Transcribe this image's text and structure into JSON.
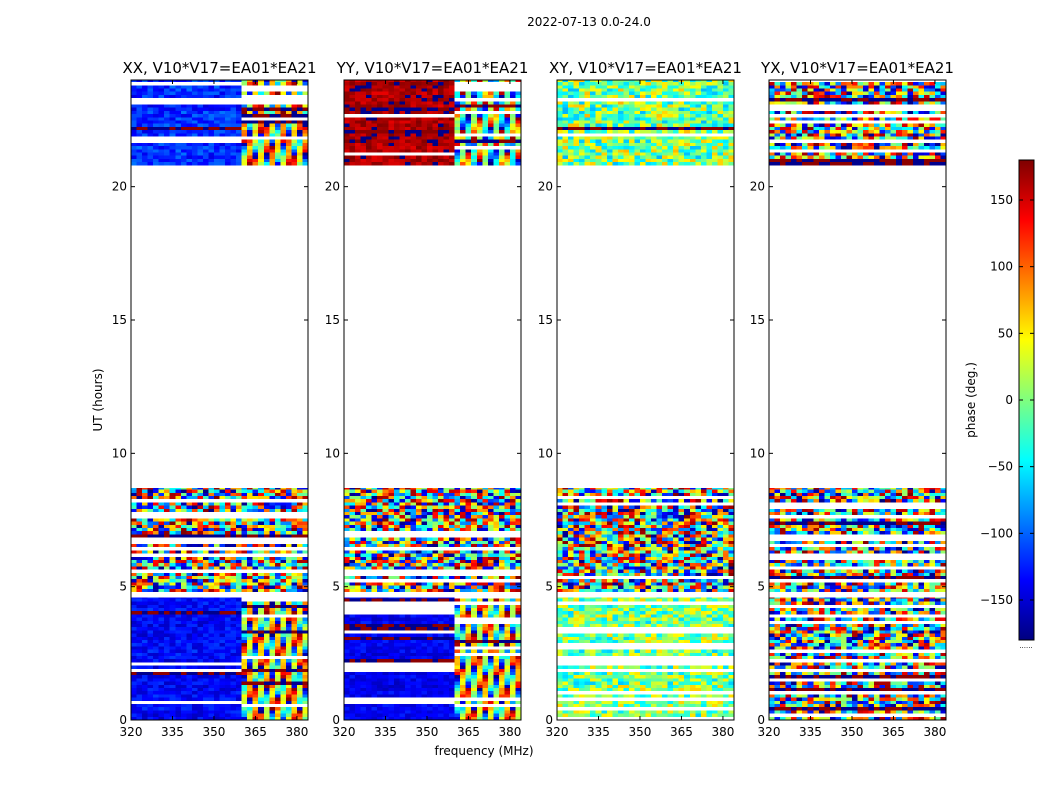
{
  "figure": {
    "suptitle": "2022-07-13 0.0-24.0",
    "xlabel": "frequency (MHz)",
    "ylabel": "UT (hours)",
    "colorbar_label": "phase (deg.)",
    "colorbar_footnote": "......"
  },
  "chart_data": {
    "type": "heatmap",
    "suptitle": "2022-07-13 0.0-24.0",
    "xlabel": "frequency (MHz)",
    "ylabel": "UT (hours)",
    "xlim": [
      320,
      384
    ],
    "ylim": [
      0,
      24
    ],
    "xticks": [
      320,
      335,
      350,
      365,
      380
    ],
    "xtick_labels": [
      "320",
      "335",
      "350",
      "365",
      "380"
    ],
    "yticks": [
      0,
      5,
      10,
      15,
      20
    ],
    "ytick_labels": [
      "0",
      "5",
      "10",
      "15",
      "20"
    ],
    "colorbar": {
      "label": "phase (deg.)",
      "range": [
        -180,
        180
      ],
      "ticks": [
        -150,
        -100,
        -50,
        0,
        50,
        100,
        150
      ],
      "tick_labels": [
        "−150",
        "−100",
        "−50",
        "0",
        "50",
        "100",
        "150"
      ],
      "colormap": [
        "#00007f",
        "#0000ff",
        "#007fff",
        "#00ffff",
        "#7fff7f",
        "#ffff00",
        "#ff7f00",
        "#ff0000",
        "#7f0000"
      ]
    },
    "data_time_ranges": [
      [
        0,
        4.6
      ],
      [
        4.8,
        8.7
      ],
      [
        20.8,
        24
      ]
    ],
    "panels": [
      {
        "title": "XX, V10*V17=EA01*EA21",
        "regions": [
          {
            "t": [
              20.8,
              24
            ],
            "f": [
              320,
              360
            ],
            "mode": "smooth",
            "base_phase": -120,
            "spread": 25
          },
          {
            "t": [
              20.8,
              24
            ],
            "f": [
              360,
              384
            ],
            "mode": "fringe",
            "base_phase": -120,
            "spread": 180
          },
          {
            "t": [
              4.8,
              8.7
            ],
            "f": [
              320,
              384
            ],
            "mode": "noise",
            "base_phase": 0,
            "spread": 180
          },
          {
            "t": [
              0,
              4.6
            ],
            "f": [
              320,
              360
            ],
            "mode": "smooth",
            "base_phase": -135,
            "spread": 20
          },
          {
            "t": [
              0,
              4.6
            ],
            "f": [
              360,
              384
            ],
            "mode": "fringe",
            "base_phase": -135,
            "spread": 180
          }
        ]
      },
      {
        "title": "YY, V10*V17=EA01*EA21",
        "regions": [
          {
            "t": [
              20.8,
              24
            ],
            "f": [
              320,
              360
            ],
            "mode": "smooth",
            "base_phase": 165,
            "spread": 20
          },
          {
            "t": [
              20.8,
              24
            ],
            "f": [
              360,
              384
            ],
            "mode": "fringe",
            "base_phase": 165,
            "spread": 180
          },
          {
            "t": [
              4.8,
              8.7
            ],
            "f": [
              320,
              384
            ],
            "mode": "noise",
            "base_phase": 0,
            "spread": 180
          },
          {
            "t": [
              0,
              4.6
            ],
            "f": [
              320,
              360
            ],
            "mode": "smooth",
            "base_phase": -140,
            "spread": 15
          },
          {
            "t": [
              0,
              4.6
            ],
            "f": [
              360,
              384
            ],
            "mode": "fringe",
            "base_phase": -140,
            "spread": 180
          }
        ]
      },
      {
        "title": "XY, V10*V17=EA01*EA21",
        "regions": [
          {
            "t": [
              20.8,
              24
            ],
            "f": [
              320,
              384
            ],
            "mode": "smooth",
            "base_phase": 0,
            "spread": 70
          },
          {
            "t": [
              4.8,
              8.7
            ],
            "f": [
              320,
              384
            ],
            "mode": "noise",
            "base_phase": 0,
            "spread": 180
          },
          {
            "t": [
              0,
              4.6
            ],
            "f": [
              320,
              384
            ],
            "mode": "smooth",
            "base_phase": 0,
            "spread": 60
          }
        ]
      },
      {
        "title": "YX, V10*V17=EA01*EA21",
        "regions": [
          {
            "t": [
              20.8,
              24
            ],
            "f": [
              320,
              384
            ],
            "mode": "noise",
            "base_phase": 0,
            "spread": 180
          },
          {
            "t": [
              4.8,
              8.7
            ],
            "f": [
              320,
              384
            ],
            "mode": "noise",
            "base_phase": 0,
            "spread": 180
          },
          {
            "t": [
              0,
              4.6
            ],
            "f": [
              320,
              384
            ],
            "mode": "noise",
            "base_phase": 0,
            "spread": 180
          }
        ]
      }
    ]
  }
}
